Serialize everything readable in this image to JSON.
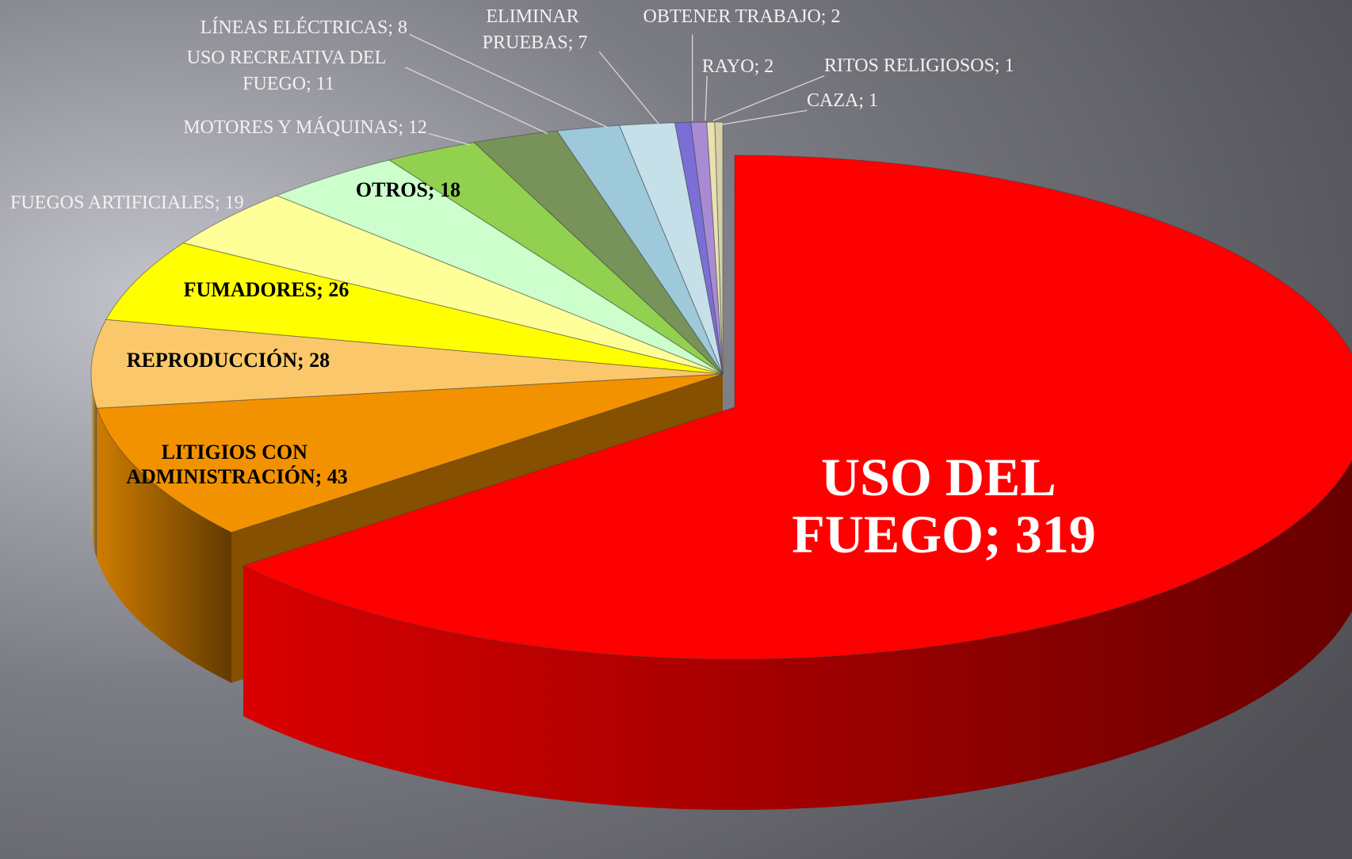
{
  "chart_data": {
    "type": "pie",
    "categories": [
      "USO DEL FUEGO; 319",
      "LITIGIOS CON ADMINISTRACIÓN; 43",
      "REPRODUCCIÓN; 28",
      "FUMADORES; 26",
      "FUEGOS ARTIFICIALES; 19",
      "OTROS; 18",
      "MOTORES Y MÁQUINAS; 12",
      "USO RECREATIVA DEL FUEGO; 11",
      "LÍNEAS ELÉCTRICAS; 8",
      "ELIMINAR PRUEBAS; 7",
      "OBTENER TRABAJO; 2",
      "RAYO; 2",
      "RITOS RELIGIOSOS; 1",
      "CAZA; 1"
    ],
    "values": [
      319,
      43,
      28,
      26,
      19,
      18,
      12,
      11,
      8,
      7,
      2,
      2,
      1,
      1
    ],
    "colors": [
      "#ff0000",
      "#f39200",
      "#fac86a",
      "#ffff00",
      "#ffff99",
      "#ccffcc",
      "#92d050",
      "#77935a",
      "#9dc9db",
      "#c5e0e8",
      "#7b6fd6",
      "#a98bd4",
      "#e8e2b0",
      "#d8d0a8"
    ]
  }
}
